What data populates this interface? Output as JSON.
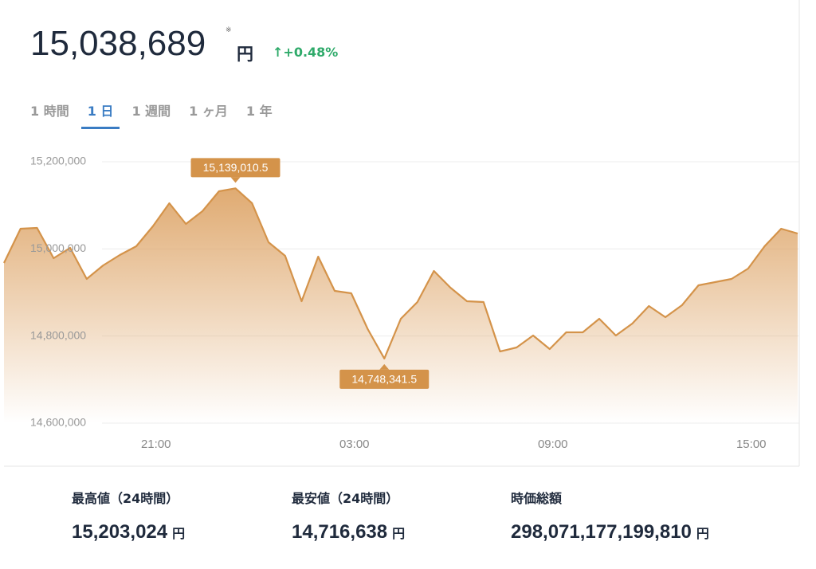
{
  "header": {
    "price": "15,038,689",
    "note": "※",
    "unit": "円",
    "change": "+0.48%"
  },
  "tabs": [
    "1 時間",
    "1 日",
    "1 週間",
    "1 ヶ月",
    "1 年"
  ],
  "active_tab": "1 日",
  "chart_data": {
    "type": "area",
    "categories": [
      null,
      null,
      null,
      null,
      null,
      null,
      null,
      null,
      null,
      "21:00",
      null,
      null,
      null,
      null,
      null,
      null,
      null,
      null,
      null,
      null,
      null,
      "03:00",
      null,
      null,
      null,
      null,
      null,
      null,
      null,
      null,
      null,
      null,
      null,
      "09:00",
      null,
      null,
      null,
      null,
      null,
      null,
      null,
      null,
      null,
      null,
      null,
      "15:00",
      null,
      null,
      null
    ],
    "values": [
      14967700,
      15046340,
      15048170,
      14978650,
      15002440,
      14931100,
      14962200,
      14985970,
      15006100,
      15051830,
      15104880,
      15057320,
      15086590,
      15132320,
      15139010.5,
      15104880,
      15015240,
      14984150,
      14879880,
      14982320,
      14903660,
      14898170,
      14815850,
      14748341.5,
      14839630,
      14878050,
      14949390,
      14910980,
      14879880,
      14878050,
      14764630,
      14773780,
      14801220,
      14770120,
      14808540,
      14808540,
      14839630,
      14801220,
      14828660,
      14868900,
      14843290,
      14870730,
      14916460,
      14923780,
      14931100,
      14954880,
      15006100,
      15046340,
      15035360
    ],
    "value_labels": [
      null,
      null,
      null,
      null,
      null,
      null,
      null,
      null,
      null,
      null,
      null,
      null,
      null,
      null,
      "15,139,010.5",
      null,
      null,
      null,
      null,
      null,
      null,
      null,
      null,
      "14,748,341.5",
      null,
      null,
      null,
      null,
      null,
      null,
      null,
      null,
      null,
      null,
      null,
      null,
      null,
      null,
      null,
      null,
      null,
      null,
      null,
      null,
      null,
      null,
      null,
      null,
      null
    ],
    "color": "#d4934a",
    "ylim": [
      14600000,
      15200000
    ],
    "yticks": [
      {
        "value": 14600000,
        "label": "14,600,000"
      },
      {
        "value": 14800000,
        "label": "14,800,000"
      },
      {
        "value": 15000000,
        "label": "15,000,000"
      },
      {
        "value": 15200000,
        "label": "15,200,000"
      }
    ],
    "grid": true
  },
  "stats": [
    {
      "label": "最高値（24時間）",
      "value": "15,203,024",
      "unit": "円"
    },
    {
      "label": "最安値（24時間）",
      "value": "14,716,638",
      "unit": "円"
    },
    {
      "label": "時価総額",
      "value": "298,071,177,199,810",
      "unit": "円"
    }
  ]
}
